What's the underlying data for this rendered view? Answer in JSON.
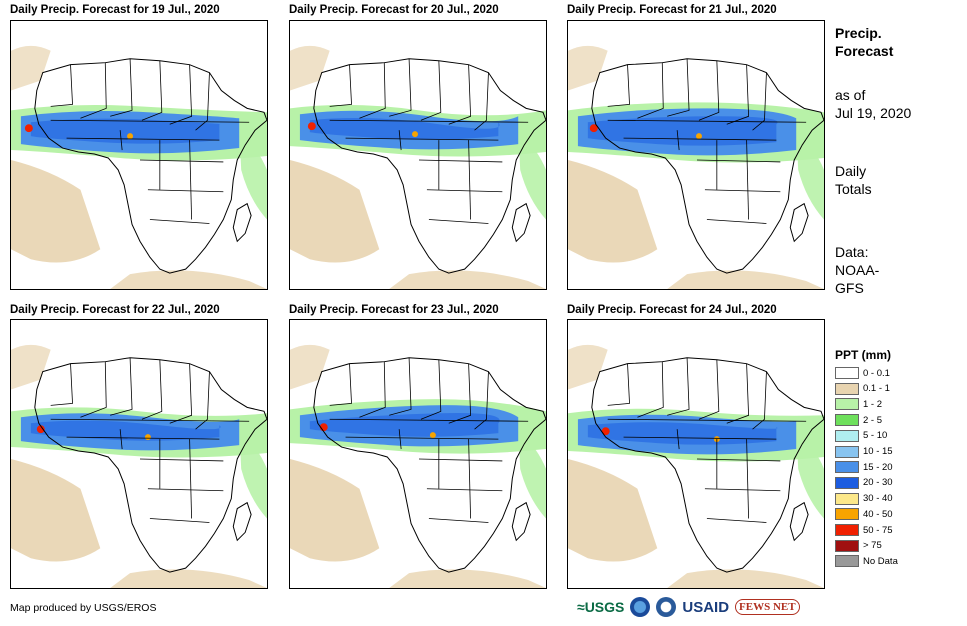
{
  "panels": [
    {
      "title": "Daily Precip. Forecast for 19 Jul., 2020"
    },
    {
      "title": "Daily Precip. Forecast for 20 Jul., 2020"
    },
    {
      "title": "Daily Precip. Forecast for 21 Jul., 2020"
    },
    {
      "title": "Daily Precip. Forecast for 22 Jul., 2020"
    },
    {
      "title": "Daily Precip. Forecast for 23 Jul., 2020"
    },
    {
      "title": "Daily Precip. Forecast for 24 Jul., 2020"
    }
  ],
  "sidebar": {
    "title_line1": "Precip.",
    "title_line2": "Forecast",
    "asof_line1": "as of",
    "asof_line2": "Jul 19, 2020",
    "totals_line1": "Daily",
    "totals_line2": "Totals",
    "data_line1": "Data:",
    "data_line2": "NOAA-",
    "data_line3": "GFS"
  },
  "legend": {
    "title": "PPT (mm)",
    "items": [
      {
        "label": "0 - 0.1",
        "color": "#ffffff"
      },
      {
        "label": "0.1 - 1",
        "color": "#e8d4b0"
      },
      {
        "label": "1 - 2",
        "color": "#b8f2a8"
      },
      {
        "label": "2 - 5",
        "color": "#6ee05c"
      },
      {
        "label": "5 - 10",
        "color": "#b0eef0"
      },
      {
        "label": "10 - 15",
        "color": "#88c4f0"
      },
      {
        "label": "15 - 20",
        "color": "#4a90e8"
      },
      {
        "label": "20 - 30",
        "color": "#1c5ce0"
      },
      {
        "label": "30 - 40",
        "color": "#fce88a"
      },
      {
        "label": "40 - 50",
        "color": "#f8a400"
      },
      {
        "label": "50 - 75",
        "color": "#f02000"
      },
      {
        "label": "> 75",
        "color": "#a01010"
      },
      {
        "label": "No Data",
        "color": "#999999"
      }
    ]
  },
  "footer": {
    "credit": "Map produced by USGS/EROS"
  },
  "logos": {
    "usgs": "USGS",
    "usaid": "USAID",
    "fews": "FEWS NET"
  }
}
